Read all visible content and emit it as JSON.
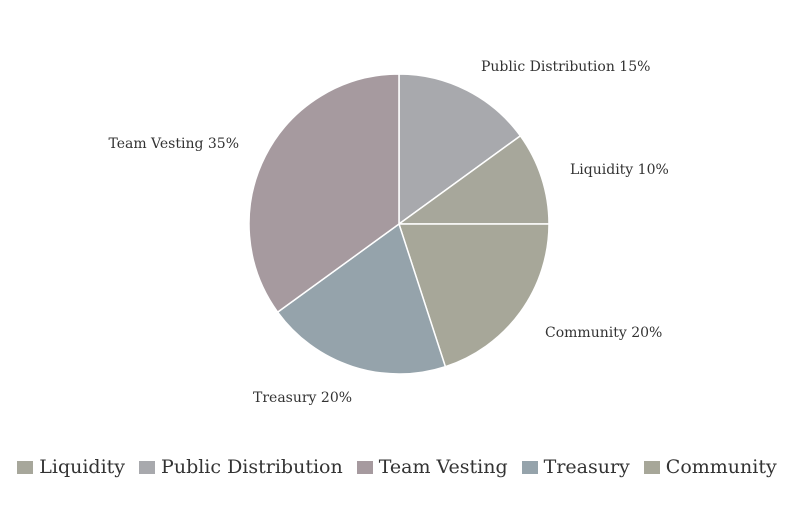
{
  "chart_data": {
    "type": "pie",
    "title": "",
    "slices": [
      {
        "name": "Public Distribution",
        "value": 15,
        "label": "Public Distribution 15%",
        "color": "#a8a9ad"
      },
      {
        "name": "Liquidity",
        "value": 10,
        "label": "Liquidity 10%",
        "color": "#a7a79b"
      },
      {
        "name": "Community",
        "value": 20,
        "label": "Community 20%",
        "color": "#a7a799"
      },
      {
        "name": "Treasury",
        "value": 20,
        "label": "Treasury 20%",
        "color": "#95a3ab"
      },
      {
        "name": "Team Vesting",
        "value": 35,
        "label": "Team Vesting 35%",
        "color": "#a69a9f"
      }
    ],
    "legend": {
      "placement": "bottom",
      "items": [
        {
          "name": "Liquidity",
          "color": "#a7a79b"
        },
        {
          "name": "Public Distribution",
          "color": "#a8a9ad"
        },
        {
          "name": "Team Vesting",
          "color": "#a69a9f"
        },
        {
          "name": "Treasury",
          "color": "#95a3ab"
        },
        {
          "name": "Community",
          "color": "#a7a799"
        }
      ]
    }
  }
}
